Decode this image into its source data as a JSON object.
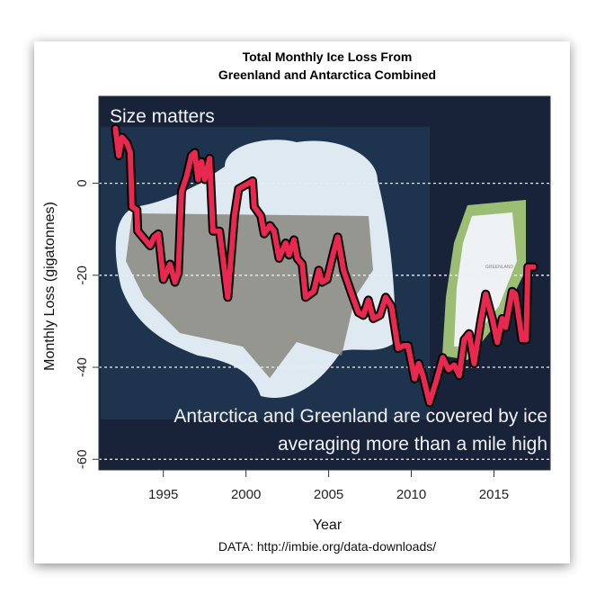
{
  "chart_data": {
    "type": "line",
    "title": [
      "Total Monthly Ice Loss From",
      "Greenland and Antarctica Combined"
    ],
    "xlabel": "Year",
    "ylabel": "Monthly Loss (gigatonnes)",
    "source": "DATA: http://imbie.org/data-downloads/",
    "xlim": [
      1991.1,
      2018.4
    ],
    "ylim": [
      -62.3,
      18.9
    ],
    "x_ticks": [
      1995,
      2000,
      2005,
      2010,
      2015
    ],
    "y_ticks": [
      0,
      -20,
      -40,
      -60
    ],
    "grid": "horizontal dotted",
    "annotations": [
      "Size matters",
      "Antarctica and Greenland are covered by ice",
      "averaging more than a mile high"
    ],
    "background_labels": [
      "GREENLAND"
    ],
    "line_color": "#e8284f",
    "series": [
      {
        "name": "Monthly Loss",
        "x": [
          1992.1,
          1992.3,
          1992.5,
          1992.8,
          1993.0,
          1993.1,
          1993.4,
          1993.45,
          1993.9,
          1994.2,
          1994.45,
          1994.7,
          1995.0,
          1995.4,
          1995.7,
          1995.9,
          1996.1,
          1996.4,
          1996.7,
          1996.9,
          1997.1,
          1997.3,
          1997.5,
          1997.8,
          1998.0,
          1998.4,
          1998.9,
          1999.3,
          1999.55,
          1999.9,
          2000.4,
          2000.5,
          2000.9,
          2001.1,
          2001.45,
          2001.7,
          2002.0,
          2002.4,
          2002.6,
          2002.9,
          2003.1,
          2003.4,
          2003.6,
          2004.1,
          2004.4,
          2004.6,
          2004.9,
          2005.3,
          2005.55,
          2005.9,
          2006.4,
          2006.8,
          2007.1,
          2007.4,
          2007.7,
          2008.1,
          2008.45,
          2008.8,
          2009.2,
          2009.55,
          2009.8,
          2010.2,
          2010.45,
          2010.7,
          2011.1,
          2011.5,
          2011.9,
          2012.25,
          2012.6,
          2012.9,
          2013.2,
          2013.5,
          2013.8,
          2014.2,
          2014.5,
          2014.9,
          2015.2,
          2015.5,
          2015.7,
          2016.1,
          2016.3,
          2016.7,
          2016.95,
          2017.05,
          2017.4
        ],
        "y": [
          11.9,
          6,
          10,
          8.7,
          6.7,
          -5.1,
          -5.8,
          -10.4,
          -12.3,
          -13.6,
          -11.7,
          -11,
          -20.9,
          -17.6,
          -21.5,
          -19.5,
          -1.8,
          1.4,
          6,
          6.7,
          0.8,
          4.7,
          0.8,
          5.4,
          -10.4,
          -10.4,
          -24.8,
          -7.1,
          -1.2,
          -0.5,
          0.5,
          -5.1,
          -7.1,
          -11,
          -9.2,
          -10.4,
          -16.3,
          -13,
          -15.6,
          -12.3,
          -16.3,
          -17.6,
          -24.8,
          -23.5,
          -18.9,
          -21.5,
          -20.9,
          -15,
          -11.7,
          -18.9,
          -24.1,
          -28.1,
          -28.7,
          -25.4,
          -29.4,
          -28.7,
          -24.8,
          -26.8,
          -35.9,
          -35.3,
          -35.3,
          -42.5,
          -39.2,
          -41.8,
          -47.7,
          -43.1,
          -37.9,
          -40.5,
          -39.5,
          -41.8,
          -34,
          -32.7,
          -39.2,
          -30,
          -24.1,
          -29.4,
          -34.6,
          -29.4,
          -31.3,
          -23.5,
          -24.1,
          -34,
          -34,
          -18.2,
          -18.2
        ]
      }
    ]
  }
}
